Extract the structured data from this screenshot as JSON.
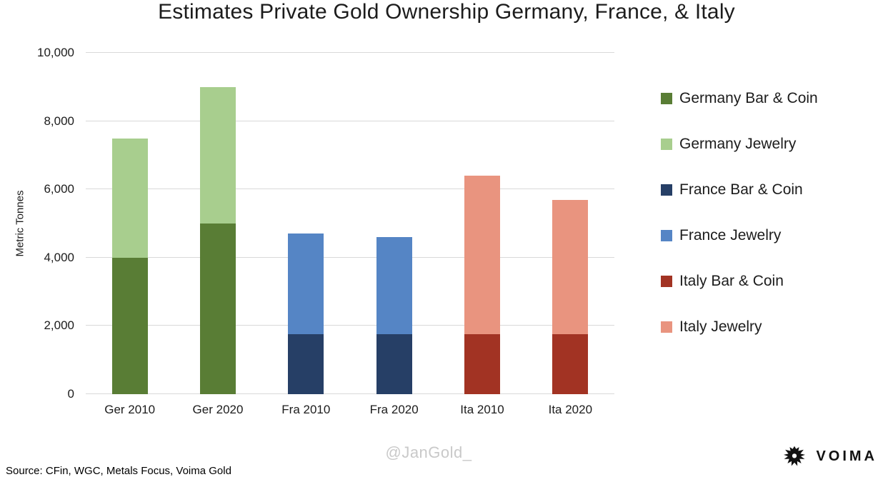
{
  "chart_data": {
    "type": "bar",
    "stacked": true,
    "title": "Estimates Private Gold Ownership Germany, France, & Italy",
    "ylabel": "Metric Tonnes",
    "ylim": [
      0,
      10000
    ],
    "grid": true,
    "legend_position": "right",
    "yticks": [
      "0",
      "2,000",
      "4,000",
      "6,000",
      "8,000",
      "10,000"
    ],
    "categories": [
      "Ger 2010",
      "Ger 2020",
      "Fra 2010",
      "Fra 2020",
      "Ita 2010",
      "Ita 2020"
    ],
    "series": [
      {
        "name": "Bar & Coin",
        "values": [
          4000,
          5000,
          1750,
          1750,
          1750,
          1750
        ],
        "colors": [
          "#597d35",
          "#597d35",
          "#263f66",
          "#263f66",
          "#a23323",
          "#a23323"
        ]
      },
      {
        "name": "Jewelry",
        "values": [
          3500,
          4000,
          2950,
          2850,
          4650,
          3950
        ],
        "colors": [
          "#a8ce8e",
          "#a8ce8e",
          "#5585c5",
          "#5585c5",
          "#e9947f",
          "#e9947f"
        ]
      }
    ],
    "totals": [
      7500,
      9000,
      4700,
      4600,
      6400,
      5700
    ],
    "legend": [
      {
        "label": "Germany Bar & Coin",
        "color": "#597d35"
      },
      {
        "label": "Germany Jewelry",
        "color": "#a8ce8e"
      },
      {
        "label": "France Bar & Coin",
        "color": "#263f66"
      },
      {
        "label": "France Jewelry",
        "color": "#5585c5"
      },
      {
        "label": "Italy Bar & Coin",
        "color": "#a23323"
      },
      {
        "label": "Italy Jewelry",
        "color": "#e9947f"
      }
    ]
  },
  "footer": {
    "source": "Source: CFin, WGC, Metals Focus, Voima Gold",
    "watermark": "@JanGold_",
    "brand": "VOIMA"
  }
}
